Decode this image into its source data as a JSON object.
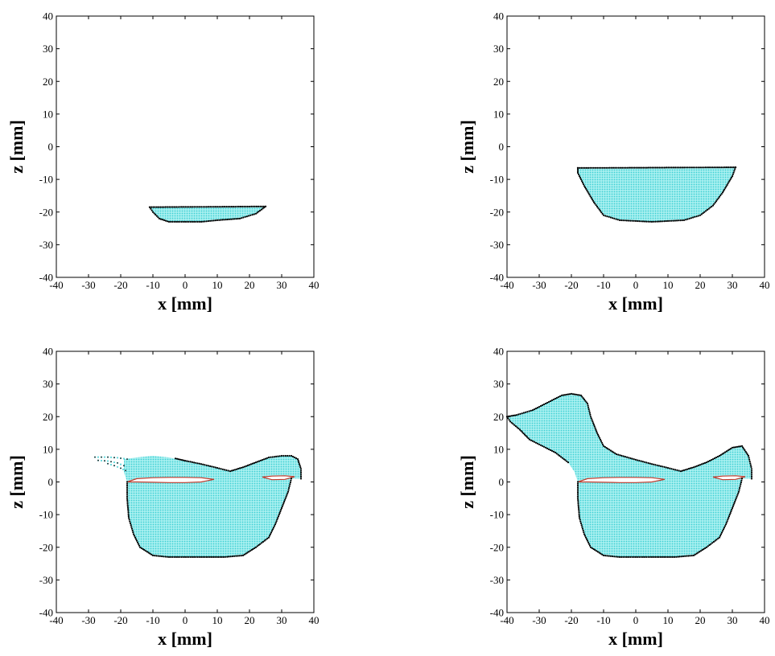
{
  "chart_data": [
    {
      "type": "scatter",
      "title": "",
      "xlabel": "x [mm]",
      "ylabel": "z [mm]",
      "xlim": [
        -40,
        40
      ],
      "ylim": [
        -40,
        40
      ],
      "xticks": [
        "-40",
        "-30",
        "-20",
        "-10",
        "0",
        "10",
        "20",
        "30",
        "40"
      ],
      "yticks": [
        "40",
        "30",
        "20",
        "10",
        "0",
        "-10",
        "-20",
        "-30",
        "-40"
      ],
      "grid": false,
      "fill_color": "#7fe3e3",
      "boundary_color": "#000000",
      "regions": [
        {
          "kind": "fill",
          "polygon": [
            [
              -11,
              -18.5
            ],
            [
              25,
              -18.3
            ],
            [
              22,
              -20.5
            ],
            [
              17,
              -22
            ],
            [
              10,
              -22.5
            ],
            [
              5,
              -23
            ],
            [
              -5,
              -23
            ],
            [
              -8,
              -22
            ],
            [
              -10,
              -20
            ]
          ]
        }
      ],
      "boundary_segments": [
        [
          [
            -11,
            -18.5
          ],
          [
            25,
            -18.3
          ]
        ],
        [
          [
            -11,
            -18.5
          ],
          [
            -10,
            -20
          ],
          [
            -8,
            -22
          ],
          [
            -5,
            -23
          ],
          [
            5,
            -23
          ],
          [
            10,
            -22.5
          ],
          [
            17,
            -22
          ],
          [
            22,
            -20.5
          ],
          [
            25,
            -18.3
          ]
        ]
      ],
      "sparse_segments": [],
      "gap_segments": []
    },
    {
      "type": "scatter",
      "title": "",
      "xlabel": "x [mm]",
      "ylabel": "z [mm]",
      "xlim": [
        -40,
        40
      ],
      "ylim": [
        -40,
        40
      ],
      "xticks": [
        "-40",
        "-30",
        "-20",
        "-10",
        "0",
        "10",
        "20",
        "30",
        "40"
      ],
      "yticks": [
        "40",
        "30",
        "20",
        "10",
        "0",
        "-10",
        "-20",
        "-30",
        "-40"
      ],
      "grid": false,
      "fill_color": "#7fe3e3",
      "boundary_color": "#000000",
      "regions": [
        {
          "kind": "fill",
          "polygon": [
            [
              -18,
              -6.5
            ],
            [
              31,
              -6.3
            ],
            [
              30,
              -9
            ],
            [
              27,
              -14
            ],
            [
              24,
              -18
            ],
            [
              20,
              -21
            ],
            [
              15,
              -22.5
            ],
            [
              5,
              -23
            ],
            [
              -5,
              -22.5
            ],
            [
              -10,
              -21
            ],
            [
              -13,
              -17
            ],
            [
              -16,
              -12
            ],
            [
              -18,
              -8
            ]
          ]
        }
      ],
      "boundary_segments": [
        [
          [
            -18,
            -6.5
          ],
          [
            31,
            -6.3
          ]
        ],
        [
          [
            -18,
            -6.5
          ],
          [
            -18,
            -8
          ],
          [
            -16,
            -12
          ],
          [
            -13,
            -17
          ],
          [
            -10,
            -21
          ],
          [
            -5,
            -22.5
          ],
          [
            5,
            -23
          ],
          [
            15,
            -22.5
          ],
          [
            20,
            -21
          ],
          [
            24,
            -18
          ],
          [
            27,
            -14
          ],
          [
            30,
            -9
          ],
          [
            31,
            -6.3
          ]
        ]
      ],
      "sparse_segments": [],
      "gap_segments": []
    },
    {
      "type": "scatter",
      "title": "",
      "xlabel": "x [mm]",
      "ylabel": "z [mm]",
      "xlim": [
        -40,
        40
      ],
      "ylim": [
        -40,
        40
      ],
      "xticks": [
        "-40",
        "-30",
        "-20",
        "-10",
        "0",
        "10",
        "20",
        "30",
        "40"
      ],
      "yticks": [
        "40",
        "30",
        "20",
        "10",
        "0",
        "-10",
        "-20",
        "-30",
        "-40"
      ],
      "grid": false,
      "fill_color": "#7fe3e3",
      "boundary_color": "#000000",
      "regions": [
        {
          "kind": "fill",
          "polygon": [
            [
              -19,
              7
            ],
            [
              -15,
              7.5
            ],
            [
              -10,
              8
            ],
            [
              -5,
              7.5
            ],
            [
              0,
              6.5
            ],
            [
              5,
              5.5
            ],
            [
              10,
              4.3
            ],
            [
              14,
              3.3
            ],
            [
              18,
              4.5
            ],
            [
              22,
              6
            ],
            [
              26,
              7.5
            ],
            [
              30,
              8
            ],
            [
              33,
              8
            ],
            [
              35,
              7
            ],
            [
              36,
              4
            ],
            [
              36,
              1
            ],
            [
              33,
              1
            ],
            [
              32,
              -3
            ],
            [
              30,
              -8
            ],
            [
              28,
              -13
            ],
            [
              26,
              -17
            ],
            [
              22,
              -20
            ],
            [
              18,
              -22.5
            ],
            [
              12,
              -23
            ],
            [
              5,
              -23
            ],
            [
              -5,
              -23
            ],
            [
              -10,
              -22.5
            ],
            [
              -14,
              -20
            ],
            [
              -16,
              -16
            ],
            [
              -17.5,
              -11
            ],
            [
              -18,
              -5
            ],
            [
              -18,
              0
            ],
            [
              -19,
              3
            ]
          ]
        }
      ],
      "boundary_segments": [
        [
          [
            -3,
            7.2
          ],
          [
            0,
            6.5
          ],
          [
            5,
            5.5
          ],
          [
            10,
            4.3
          ],
          [
            14,
            3.3
          ],
          [
            18,
            4.5
          ],
          [
            22,
            6
          ],
          [
            26,
            7.5
          ],
          [
            30,
            8
          ],
          [
            33,
            8
          ],
          [
            35,
            7
          ],
          [
            36,
            4
          ],
          [
            36,
            1
          ]
        ],
        [
          [
            -18,
            0
          ],
          [
            -18,
            -5
          ],
          [
            -17.5,
            -11
          ],
          [
            -16,
            -16
          ],
          [
            -14,
            -20
          ],
          [
            -10,
            -22.5
          ],
          [
            -5,
            -23
          ],
          [
            5,
            -23
          ],
          [
            12,
            -23
          ],
          [
            18,
            -22.5
          ],
          [
            22,
            -20
          ],
          [
            26,
            -17
          ],
          [
            28,
            -13
          ],
          [
            30,
            -8
          ],
          [
            32,
            -3
          ],
          [
            33,
            1
          ]
        ]
      ],
      "sparse_segments": [
        [
          [
            -28,
            7.6
          ],
          [
            -24,
            7.6
          ],
          [
            -21,
            7.4
          ],
          [
            -18,
            7
          ]
        ],
        [
          [
            -27,
            6.6
          ],
          [
            -24,
            6.4
          ],
          [
            -21,
            5.8
          ],
          [
            -19,
            5
          ]
        ],
        [
          [
            -24,
            5.6
          ],
          [
            -22,
            5
          ],
          [
            -20,
            4.2
          ],
          [
            -18.5,
            3.5
          ]
        ]
      ],
      "gap_segments": [
        [
          [
            -18,
            0
          ],
          [
            -15,
            1
          ],
          [
            -10,
            1.3
          ],
          [
            -5,
            1.4
          ],
          [
            0,
            1.4
          ],
          [
            5,
            1.3
          ],
          [
            9,
            0.8
          ],
          [
            5,
            0
          ],
          [
            0,
            -0.2
          ],
          [
            -5,
            -0.2
          ],
          [
            -10,
            -0.1
          ],
          [
            -15,
            0
          ]
        ],
        [
          [
            24,
            1.5
          ],
          [
            27,
            1.8
          ],
          [
            31,
            1.9
          ],
          [
            34,
            1.6
          ],
          [
            31,
            0.8
          ],
          [
            27,
            0.7
          ]
        ]
      ]
    },
    {
      "type": "scatter",
      "title": "",
      "xlabel": "x [mm]",
      "ylabel": "z [mm]",
      "xlim": [
        -40,
        40
      ],
      "ylim": [
        -40,
        40
      ],
      "xticks": [
        "-40",
        "-30",
        "-20",
        "-10",
        "0",
        "10",
        "20",
        "30",
        "40"
      ],
      "yticks": [
        "40",
        "30",
        "20",
        "10",
        "0",
        "-10",
        "-20",
        "-30",
        "-40"
      ],
      "grid": false,
      "fill_color": "#7fe3e3",
      "boundary_color": "#000000",
      "regions": [
        {
          "kind": "fill",
          "polygon": [
            [
              -40,
              20
            ],
            [
              -37,
              20.5
            ],
            [
              -32,
              22
            ],
            [
              -27,
              24.5
            ],
            [
              -23,
              26.5
            ],
            [
              -20,
              27
            ],
            [
              -17,
              26.5
            ],
            [
              -15,
              24
            ],
            [
              -14,
              20
            ],
            [
              -12,
              15
            ],
            [
              -10,
              11
            ],
            [
              -6,
              8.5
            ],
            [
              0,
              6.8
            ],
            [
              5,
              5.5
            ],
            [
              10,
              4.3
            ],
            [
              14,
              3.3
            ],
            [
              18,
              4.5
            ],
            [
              22,
              6
            ],
            [
              26,
              8
            ],
            [
              30,
              10.5
            ],
            [
              33,
              11
            ],
            [
              35,
              8
            ],
            [
              36,
              4
            ],
            [
              36,
              1
            ],
            [
              33,
              1
            ],
            [
              32,
              -3
            ],
            [
              30,
              -8
            ],
            [
              28,
              -13
            ],
            [
              26,
              -17
            ],
            [
              22,
              -20
            ],
            [
              18,
              -22.5
            ],
            [
              12,
              -23
            ],
            [
              5,
              -23
            ],
            [
              -5,
              -23
            ],
            [
              -10,
              -22.5
            ],
            [
              -14,
              -20
            ],
            [
              -16,
              -16
            ],
            [
              -17.5,
              -11
            ],
            [
              -18,
              -5
            ],
            [
              -18,
              0
            ],
            [
              -19,
              3
            ],
            [
              -21,
              6
            ],
            [
              -25,
              9
            ],
            [
              -29,
              11
            ],
            [
              -33,
              13
            ],
            [
              -36,
              16
            ],
            [
              -39,
              18.5
            ]
          ]
        }
      ],
      "boundary_segments": [
        [
          [
            -40,
            20
          ],
          [
            -37,
            20.5
          ],
          [
            -32,
            22
          ],
          [
            -27,
            24.5
          ],
          [
            -23,
            26.5
          ],
          [
            -20,
            27
          ],
          [
            -17,
            26.5
          ],
          [
            -15,
            24
          ],
          [
            -14,
            20
          ],
          [
            -12,
            15
          ],
          [
            -10,
            11
          ],
          [
            -6,
            8.5
          ],
          [
            0,
            6.8
          ],
          [
            5,
            5.5
          ],
          [
            10,
            4.3
          ],
          [
            14,
            3.3
          ],
          [
            18,
            4.5
          ],
          [
            22,
            6
          ],
          [
            26,
            8
          ],
          [
            30,
            10.5
          ],
          [
            33,
            11
          ],
          [
            35,
            8
          ],
          [
            36,
            4
          ],
          [
            36,
            1
          ]
        ],
        [
          [
            -40,
            20
          ],
          [
            -39,
            18.5
          ],
          [
            -36,
            16
          ],
          [
            -33,
            13
          ],
          [
            -29,
            11
          ],
          [
            -25,
            9
          ],
          [
            -21,
            6
          ]
        ],
        [
          [
            -18,
            0
          ],
          [
            -18,
            -5
          ],
          [
            -17.5,
            -11
          ],
          [
            -16,
            -16
          ],
          [
            -14,
            -20
          ],
          [
            -10,
            -22.5
          ],
          [
            -5,
            -23
          ],
          [
            5,
            -23
          ],
          [
            12,
            -23
          ],
          [
            18,
            -22.5
          ],
          [
            22,
            -20
          ],
          [
            26,
            -17
          ],
          [
            28,
            -13
          ],
          [
            30,
            -8
          ],
          [
            32,
            -3
          ],
          [
            33,
            1
          ]
        ]
      ],
      "sparse_segments": [],
      "gap_segments": [
        [
          [
            -18,
            0
          ],
          [
            -15,
            1
          ],
          [
            -10,
            1.3
          ],
          [
            -5,
            1.4
          ],
          [
            0,
            1.4
          ],
          [
            5,
            1.3
          ],
          [
            9,
            0.8
          ],
          [
            5,
            0
          ],
          [
            0,
            -0.2
          ],
          [
            -5,
            -0.2
          ],
          [
            -10,
            -0.1
          ],
          [
            -15,
            0
          ]
        ],
        [
          [
            24,
            1.5
          ],
          [
            27,
            1.8
          ],
          [
            31,
            1.9
          ],
          [
            34,
            1.6
          ],
          [
            31,
            0.8
          ],
          [
            27,
            0.7
          ]
        ]
      ]
    }
  ]
}
